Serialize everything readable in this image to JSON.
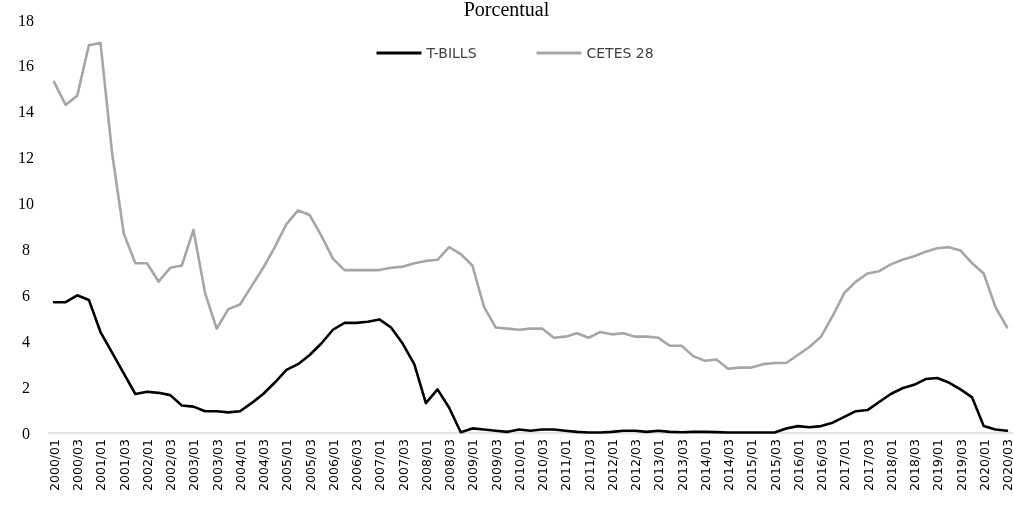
{
  "chart_data": {
    "type": "line",
    "title": "Porcentual",
    "categories": [
      "2000/01",
      null,
      "2000/03",
      null,
      "2001/01",
      null,
      "2001/03",
      null,
      "2002/01",
      null,
      "2002/03",
      null,
      "2003/01",
      null,
      "2003/03",
      null,
      "2004/01",
      null,
      "2004/03",
      null,
      "2005/01",
      null,
      "2005/03",
      null,
      "2006/01",
      null,
      "2006/03",
      null,
      "2007/01",
      null,
      "2007/03",
      null,
      "2008/01",
      null,
      "2008/03",
      null,
      "2009/01",
      null,
      "2009/03",
      null,
      "2010/01",
      null,
      "2010/03",
      null,
      "2011/01",
      null,
      "2011/03",
      null,
      "2012/01",
      null,
      "2012/03",
      null,
      "2013/01",
      null,
      "2013/03",
      null,
      "2014/01",
      null,
      "2014/03",
      null,
      "2015/01",
      null,
      "2015/03",
      null,
      "2016/01",
      null,
      "2016/03",
      null,
      "2017/01",
      null,
      "2017/03",
      null,
      "2018/01",
      null,
      "2018/03",
      null,
      "2019/01",
      null,
      "2019/03",
      null,
      "2020/01",
      null,
      "2020/03"
    ],
    "series": [
      {
        "name": "T-BILLS",
        "color": "#000000",
        "values": [
          5.7,
          5.7,
          6.0,
          5.8,
          4.4,
          3.5,
          2.6,
          1.7,
          1.8,
          1.75,
          1.65,
          1.2,
          1.15,
          0.95,
          0.95,
          0.9,
          0.95,
          1.3,
          1.7,
          2.2,
          2.75,
          3.0,
          3.4,
          3.9,
          4.5,
          4.8,
          4.8,
          4.85,
          4.95,
          4.6,
          3.9,
          3.0,
          1.3,
          1.9,
          1.1,
          0.03,
          0.2,
          0.15,
          0.1,
          0.05,
          0.15,
          0.1,
          0.15,
          0.15,
          0.1,
          0.05,
          0.02,
          0.02,
          0.05,
          0.1,
          0.1,
          0.05,
          0.1,
          0.05,
          0.03,
          0.05,
          0.05,
          0.04,
          0.02,
          0.02,
          0.02,
          0.02,
          0.02,
          0.2,
          0.3,
          0.25,
          0.3,
          0.45,
          0.7,
          0.95,
          1.0,
          1.35,
          1.7,
          1.95,
          2.1,
          2.35,
          2.4,
          2.2,
          1.9,
          1.55,
          0.3,
          0.15,
          0.1
        ]
      },
      {
        "name": "CETES 28",
        "color": "#a6a6a6",
        "values": [
          15.3,
          14.3,
          14.7,
          16.9,
          17.0,
          12.2,
          8.7,
          7.4,
          7.4,
          6.6,
          7.2,
          7.3,
          8.85,
          6.1,
          4.55,
          5.4,
          5.6,
          6.4,
          7.2,
          8.1,
          9.1,
          9.7,
          9.5,
          8.6,
          7.6,
          7.1,
          7.1,
          7.1,
          7.1,
          7.2,
          7.25,
          7.4,
          7.5,
          7.55,
          8.1,
          7.8,
          7.3,
          5.5,
          4.6,
          4.55,
          4.5,
          4.55,
          4.55,
          4.15,
          4.2,
          4.35,
          4.15,
          4.4,
          4.3,
          4.35,
          4.2,
          4.2,
          4.15,
          3.8,
          3.8,
          3.35,
          3.15,
          3.2,
          2.8,
          2.85,
          2.85,
          3.0,
          3.05,
          3.05,
          3.4,
          3.75,
          4.2,
          5.1,
          6.1,
          6.6,
          6.95,
          7.05,
          7.35,
          7.55,
          7.7,
          7.9,
          8.05,
          8.1,
          7.95,
          7.4,
          6.95,
          5.5,
          4.6
        ]
      }
    ],
    "ylim": [
      0,
      18
    ],
    "yticks": [
      0,
      2,
      4,
      6,
      8,
      10,
      12,
      14,
      16,
      18
    ],
    "grid": false,
    "legend": "top",
    "marker": "none",
    "line_style": "solid"
  }
}
